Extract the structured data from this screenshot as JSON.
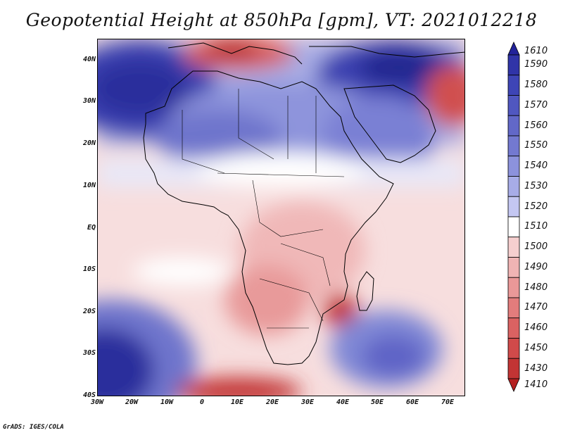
{
  "title": "Geopotential Height at 850hPa [gpm], VT: 2021012218",
  "footer": "GrADS: IGES/COLA",
  "lat_ticks": [
    "40N",
    "30N",
    "20N",
    "10N",
    "EQ",
    "10S",
    "20S",
    "30S",
    "40S"
  ],
  "lon_ticks": [
    "30W",
    "20W",
    "10W",
    "0",
    "10E",
    "20E",
    "30E",
    "40E",
    "50E",
    "60E",
    "70E"
  ],
  "colorbar": {
    "labels": [
      "1610",
      "1590",
      "1580",
      "1570",
      "1560",
      "1550",
      "1540",
      "1530",
      "1520",
      "1510",
      "1500",
      "1490",
      "1480",
      "1470",
      "1460",
      "1450",
      "1430",
      "1410"
    ],
    "colors": [
      "#22239a",
      "#3034a8",
      "#3e45b6",
      "#5057c0",
      "#6268c8",
      "#7379d0",
      "#8c92dc",
      "#a7ace7",
      "#c4c7f2",
      "#ffffff",
      "#f6cfcf",
      "#f0b4b4",
      "#ea9898",
      "#e27c7c",
      "#da6262",
      "#d04a4a",
      "#c23434",
      "#b42020"
    ]
  },
  "map": {
    "region": "Africa",
    "lon_range": [
      -30,
      75
    ],
    "lat_range": [
      -40,
      45
    ]
  }
}
